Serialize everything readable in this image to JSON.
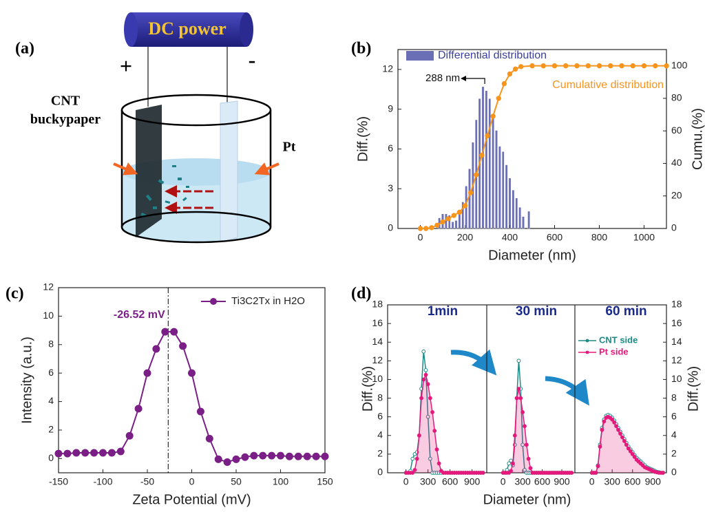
{
  "diagram": {
    "label": "(a)",
    "power": "DC power",
    "positive": "+",
    "negative": "-",
    "left_electrode": [
      "CNT",
      "buckypaper"
    ],
    "right_electrode": "Pt"
  },
  "chart_data": [
    {
      "type": "combo",
      "panel": "(b)",
      "xlabel": "Diameter (nm)",
      "ylabel": "Diff.(%)",
      "y2label": "Cumu.(%)",
      "xlim": [
        -100,
        1100
      ],
      "xticks": [
        0,
        200,
        400,
        600,
        800,
        1000
      ],
      "ylim": [
        0,
        13.5
      ],
      "yticks": [
        0,
        3,
        6,
        9,
        12
      ],
      "y2lim": [
        0,
        110
      ],
      "y2ticks": [
        0,
        20,
        40,
        60,
        80,
        100
      ],
      "series": [
        {
          "name": "Differential distribution",
          "type": "bar",
          "color": "#3a3f9e",
          "x": [
            85,
            100,
            115,
            130,
            145,
            160,
            175,
            190,
            205,
            220,
            235,
            250,
            265,
            280,
            295,
            310,
            325,
            340,
            355,
            370,
            385,
            400,
            415,
            430,
            445,
            460,
            485
          ],
          "values": [
            0.8,
            1.1,
            1.1,
            1.0,
            0.5,
            0.6,
            1.2,
            2.0,
            3.2,
            4.5,
            6.5,
            8.2,
            9.8,
            10.7,
            10.4,
            9.8,
            8.6,
            7.4,
            6.2,
            5.8,
            4.8,
            3.8,
            2.9,
            2.3,
            1.6,
            0.9,
            1.3
          ]
        },
        {
          "name": "Cumulative distribution",
          "type": "line",
          "axis": "y2",
          "color": "#f7941d",
          "x": [
            0,
            25,
            50,
            75,
            100,
            125,
            150,
            175,
            200,
            225,
            250,
            275,
            300,
            325,
            350,
            375,
            400,
            425,
            450,
            500,
            550,
            600,
            650,
            700,
            750,
            800,
            850,
            900,
            950,
            1000,
            1050,
            1100
          ],
          "values": [
            0,
            0,
            0.5,
            2,
            4,
            6,
            8,
            10,
            14,
            22,
            33,
            45,
            57,
            69,
            80,
            89,
            95,
            98,
            99.5,
            100,
            100,
            100,
            100,
            100,
            100,
            100,
            100,
            100,
            100,
            100,
            100,
            100
          ]
        }
      ],
      "annotation": {
        "text": "288 nm",
        "x": 288
      }
    },
    {
      "type": "line",
      "panel": "(c)",
      "xlabel": "Zeta Potential (mV)",
      "ylabel": "Intensity (a.u.)",
      "xlim": [
        -150,
        150
      ],
      "xticks": [
        -150,
        -100,
        -50,
        0,
        50,
        100,
        150
      ],
      "ylim": [
        -1,
        12
      ],
      "yticks": [
        0,
        2,
        4,
        6,
        8,
        10,
        12
      ],
      "series": [
        {
          "name": "Ti3C2Tx in H2O",
          "color": "#7a1f86",
          "x": [
            -150,
            -140,
            -130,
            -120,
            -110,
            -100,
            -90,
            -80,
            -70,
            -60,
            -50,
            -40,
            -30,
            -20,
            -10,
            0,
            10,
            20,
            30,
            40,
            50,
            60,
            70,
            80,
            90,
            100,
            110,
            120,
            130,
            140,
            150
          ],
          "values": [
            0.35,
            0.35,
            0.4,
            0.4,
            0.4,
            0.4,
            0.4,
            0.5,
            1.6,
            3.5,
            6.0,
            7.7,
            8.9,
            8.9,
            7.9,
            6.0,
            3.3,
            1.4,
            -0.05,
            -0.25,
            -0.05,
            0.1,
            0.2,
            0.2,
            0.2,
            0.2,
            0.15,
            0.15,
            0.15,
            0.15,
            0.15
          ]
        }
      ],
      "vline": {
        "value": -26.52,
        "label": "-26.52 mV"
      }
    },
    {
      "type": "line",
      "panel": "(d)",
      "xlabel": "Diameter (nm)",
      "ylabel": "Diff.(%)",
      "y2label": "Diff.(%)",
      "xlim": [
        -250,
        1100
      ],
      "xticks": [
        0,
        300,
        600,
        900
      ],
      "ylim": [
        0,
        18
      ],
      "yticks": [
        0,
        2,
        4,
        6,
        8,
        10,
        12,
        14,
        16,
        18
      ],
      "y2lim": [
        0,
        18
      ],
      "y2ticks": [
        0,
        2,
        4,
        6,
        8,
        10,
        12,
        14,
        16,
        18
      ],
      "legend": [
        {
          "name": "CNT side",
          "color": "#1b8a84"
        },
        {
          "name": "Pt side",
          "color": "#e5197c"
        }
      ],
      "panels": [
        {
          "title": "1min",
          "x": [
            0,
            30,
            60,
            90,
            120,
            150,
            180,
            210,
            240,
            270,
            300,
            330,
            360,
            390,
            420,
            450,
            480,
            510,
            540,
            570,
            600,
            630,
            660,
            690,
            720,
            750,
            780,
            810,
            840,
            870,
            900,
            930,
            960,
            990,
            1020,
            1050
          ],
          "series": [
            {
              "values": [
                0,
                0,
                0.2,
                1.5,
                2,
                2.2,
                4,
                9,
                13,
                11,
                6,
                1.5,
                0,
                0,
                0,
                0,
                0,
                0,
                0,
                0,
                0,
                0,
                0,
                0,
                0,
                0,
                0,
                0,
                0,
                0,
                0,
                0,
                0,
                0,
                0,
                0
              ]
            },
            {
              "values": [
                0,
                0,
                0,
                0,
                0.3,
                1.5,
                4,
                8,
                10,
                10.5,
                9.5,
                8,
                6.5,
                4.5,
                2.5,
                1,
                0.2,
                0,
                0,
                0,
                0,
                0,
                0,
                0,
                0,
                0,
                0,
                0,
                0,
                0,
                0,
                0,
                0,
                0,
                0,
                0
              ]
            }
          ]
        },
        {
          "title": "30 min",
          "x": [
            0,
            30,
            60,
            90,
            120,
            150,
            180,
            210,
            240,
            270,
            300,
            330,
            360,
            390,
            420,
            450,
            480,
            510,
            540,
            570,
            600,
            630,
            660,
            690,
            720,
            750,
            780,
            810,
            840,
            870,
            900,
            930,
            960,
            990,
            1020,
            1050
          ],
          "series": [
            {
              "values": [
                0,
                0,
                0.3,
                1,
                1.3,
                0.8,
                3,
                8,
                12,
                9,
                3,
                0.3,
                0,
                0,
                0,
                0,
                0,
                0,
                0,
                0,
                0,
                0,
                0,
                0,
                0,
                0,
                0,
                0,
                0,
                0,
                0,
                0,
                0,
                0,
                0,
                0
              ]
            },
            {
              "values": [
                0,
                0,
                0,
                0,
                0.2,
                1,
                4,
                8,
                9,
                8,
                6.5,
                5,
                3,
                1.5,
                0.5,
                0,
                0,
                0,
                0,
                0,
                0,
                0,
                0,
                0,
                0,
                0,
                0,
                0,
                0,
                0,
                0,
                0,
                0,
                0,
                0,
                0
              ]
            }
          ]
        },
        {
          "title": "60 min",
          "x": [
            0,
            30,
            60,
            90,
            120,
            150,
            180,
            210,
            240,
            270,
            300,
            330,
            360,
            390,
            420,
            450,
            480,
            510,
            540,
            570,
            600,
            630,
            660,
            690,
            720,
            750,
            780,
            810,
            840,
            870,
            900,
            930,
            960,
            990,
            1020,
            1050
          ],
          "series": [
            {
              "values": [
                0,
                0,
                0,
                0.8,
                3,
                4.8,
                5.7,
                6.1,
                6.2,
                6.1,
                5.9,
                5.6,
                5.2,
                4.8,
                4.4,
                4.0,
                3.6,
                3.2,
                2.8,
                2.5,
                2.2,
                1.9,
                1.6,
                1.4,
                1.2,
                1.0,
                0.8,
                0.6,
                0.5,
                0.4,
                0.3,
                0.2,
                0.1,
                0.05,
                0,
                0
              ]
            },
            {
              "values": [
                0,
                0,
                0,
                0.7,
                2.8,
                4.6,
                5.5,
                5.9,
                6.0,
                5.9,
                5.7,
                5.4,
                5.0,
                4.6,
                4.2,
                3.8,
                3.4,
                3.0,
                2.6,
                2.3,
                2.0,
                1.7,
                1.4,
                1.2,
                1.0,
                0.8,
                0.6,
                0.5,
                0.4,
                0.3,
                0.2,
                0.1,
                0.05,
                0,
                0,
                0
              ]
            }
          ]
        }
      ]
    }
  ]
}
